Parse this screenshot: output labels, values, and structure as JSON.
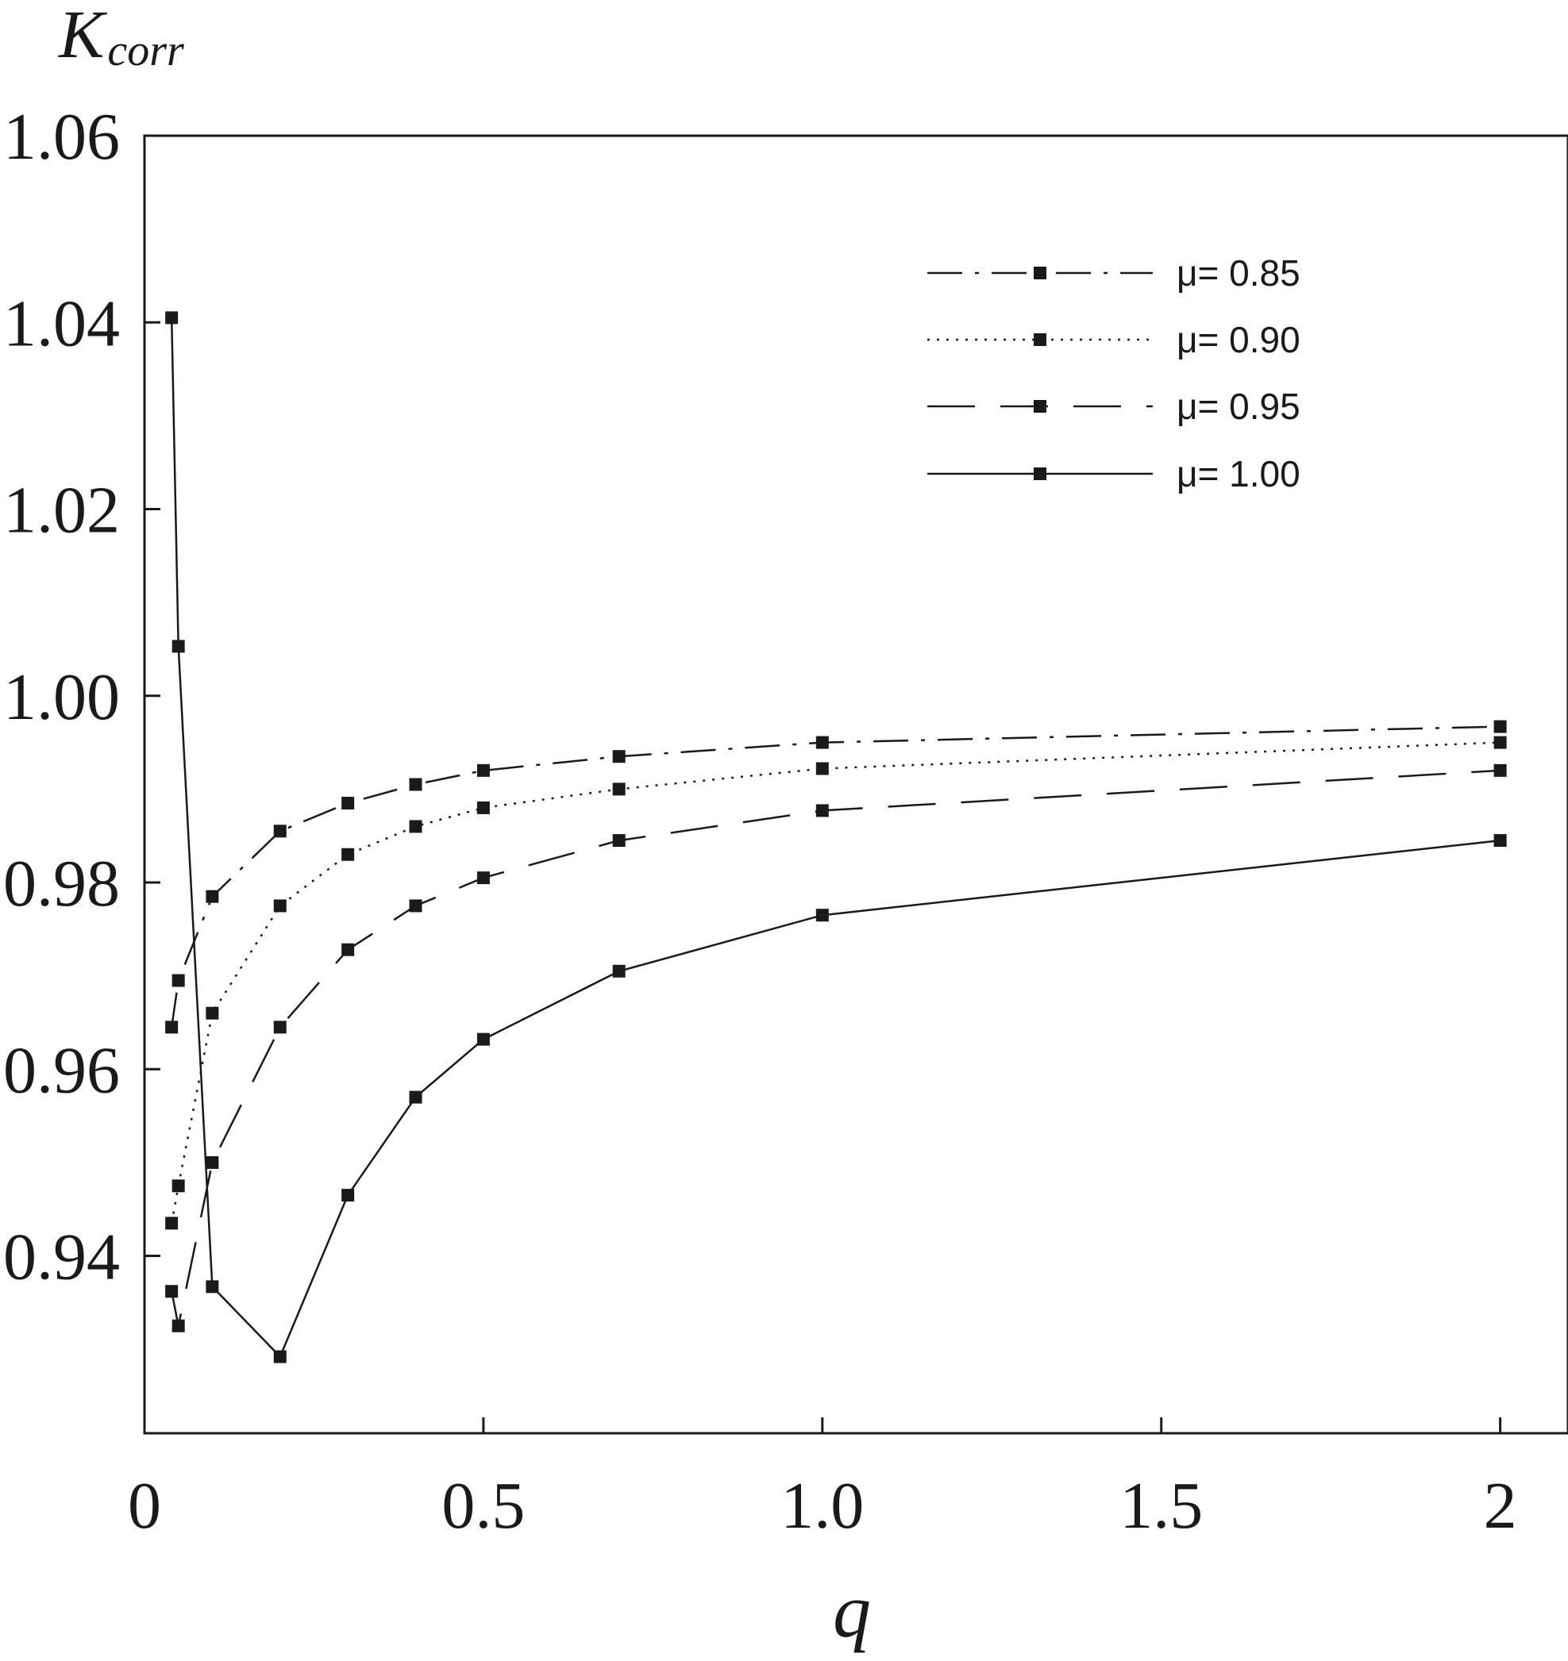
{
  "chart_data": {
    "type": "line",
    "xlabel": "q",
    "ylabel": "K",
    "ylabel_subscript": "corr",
    "xlim": [
      0,
      2.1
    ],
    "ylim": [
      0.921,
      1.06
    ],
    "x_ticks": [
      {
        "value": 0,
        "label": "0"
      },
      {
        "value": 0.5,
        "label": "0.5"
      },
      {
        "value": 1.0,
        "label": "1.0"
      },
      {
        "value": 1.5,
        "label": "1.5"
      },
      {
        "value": 2.0,
        "label": "2"
      }
    ],
    "y_ticks": [
      {
        "value": 0.94,
        "label": "0.94"
      },
      {
        "value": 0.96,
        "label": "0.96"
      },
      {
        "value": 0.98,
        "label": "0.98"
      },
      {
        "value": 1.0,
        "label": "1.00"
      },
      {
        "value": 1.02,
        "label": "1.02"
      },
      {
        "value": 1.04,
        "label": "1.04"
      },
      {
        "value": 1.06,
        "label": "1.06"
      }
    ],
    "grid": false,
    "legend_position": "top-right",
    "series": [
      {
        "name": "μ= 0.85",
        "line_style": "dash-dot",
        "color": "#1a1a1a",
        "x": [
          0.04,
          0.05,
          0.1,
          0.2,
          0.3,
          0.4,
          0.5,
          0.7,
          1.0,
          2.0
        ],
        "y": [
          0.9645,
          0.9695,
          0.9785,
          0.9855,
          0.9885,
          0.9905,
          0.992,
          0.9935,
          0.995,
          0.9967
        ]
      },
      {
        "name": "μ= 0.90",
        "line_style": "dotted",
        "color": "#1a1a1a",
        "x": [
          0.04,
          0.05,
          0.1,
          0.2,
          0.3,
          0.4,
          0.5,
          0.7,
          1.0,
          2.0
        ],
        "y": [
          0.9435,
          0.9475,
          0.966,
          0.9775,
          0.983,
          0.986,
          0.988,
          0.99,
          0.9922,
          0.995
        ]
      },
      {
        "name": "μ= 0.95",
        "line_style": "dashed",
        "color": "#1a1a1a",
        "x": [
          0.04,
          0.05,
          0.1,
          0.2,
          0.3,
          0.4,
          0.5,
          0.7,
          1.0,
          2.0
        ],
        "y": [
          0.9362,
          0.9325,
          0.95,
          0.9645,
          0.9728,
          0.9775,
          0.9805,
          0.9845,
          0.9877,
          0.992
        ]
      },
      {
        "name": "μ= 1.00",
        "line_style": "solid",
        "color": "#1a1a1a",
        "x": [
          0.04,
          0.05,
          0.1,
          0.2,
          0.3,
          0.4,
          0.5,
          0.7,
          1.0,
          2.0
        ],
        "y": [
          1.0405,
          1.0053,
          0.9367,
          0.9292,
          0.9465,
          0.957,
          0.9632,
          0.9705,
          0.9765,
          0.9845
        ]
      }
    ]
  }
}
